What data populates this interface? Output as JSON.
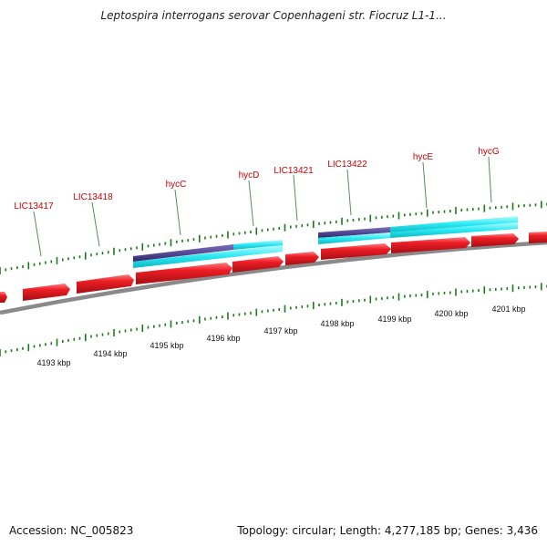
{
  "title": "Leptospira interrogans serovar Copenhageni str. Fiocruz L1-1...",
  "footer": {
    "accession": "Accession: NC_005823",
    "stats": "Topology: circular; Length: 4,277,185 bp; Genes: 3,436"
  },
  "colors": {
    "gene_forward": "#e8121c",
    "feature_cyan": "#22e6f0",
    "feature_purple": "#4a3f8e",
    "tick_green": "#1a7a1a",
    "backbone": "#888888",
    "label_red": "#cc0000"
  },
  "gene_labels": [
    "LIC13417",
    "LIC13418",
    "hycC",
    "hycD",
    "LIC13421",
    "LIC13422",
    "hycE",
    "hycG"
  ],
  "scale_labels": [
    "4193 kbp",
    "4194 kbp",
    "4195 kbp",
    "4196 kbp",
    "4197 kbp",
    "4198 kbp",
    "4199 kbp",
    "4200 kbp",
    "4201 kbp"
  ]
}
